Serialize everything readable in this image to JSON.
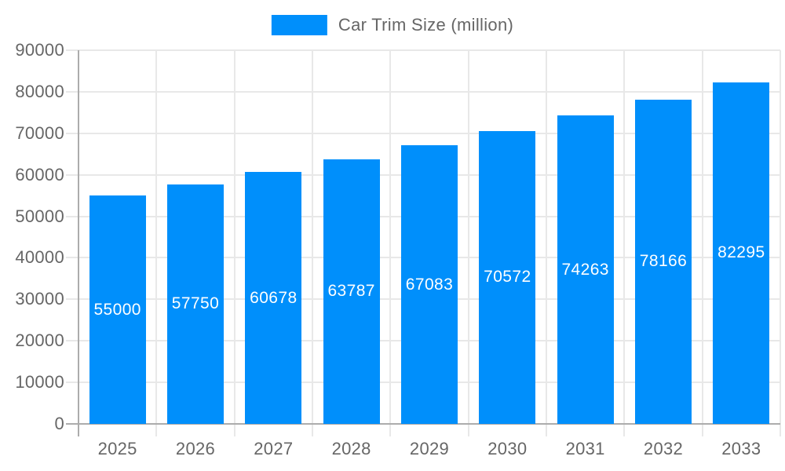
{
  "legend": {
    "label": "Car Trim Size (million)"
  },
  "chart_data": {
    "type": "bar",
    "title": "",
    "categories": [
      "2025",
      "2026",
      "2027",
      "2028",
      "2029",
      "2030",
      "2031",
      "2032",
      "2033"
    ],
    "series": [
      {
        "name": "Car Trim Size (million)",
        "values": [
          55000,
          57750,
          60678,
          63787,
          67083,
          70572,
          74263,
          78166,
          82295
        ]
      }
    ],
    "value_labels": [
      "55000",
      "57750",
      "60678",
      "63787",
      "67083",
      "70572",
      "74263",
      "78166",
      "82295"
    ],
    "y_ticks": [
      "0",
      "10000",
      "20000",
      "30000",
      "40000",
      "50000",
      "60000",
      "70000",
      "80000",
      "90000"
    ],
    "ylim": [
      0,
      90000
    ],
    "ytick_step": 10000,
    "xlabel": "",
    "ylabel": "",
    "grid": true,
    "legend_position": "top",
    "value_labels_position": "inside-center"
  },
  "colors": {
    "bar": "#008FFB",
    "grid_line": "#E8E8E8",
    "axis_line": "#ACACAC",
    "tick_label": "#666666",
    "legend_text": "#666666",
    "value_label": "#FFFFFF",
    "background": "#FFFFFF"
  }
}
